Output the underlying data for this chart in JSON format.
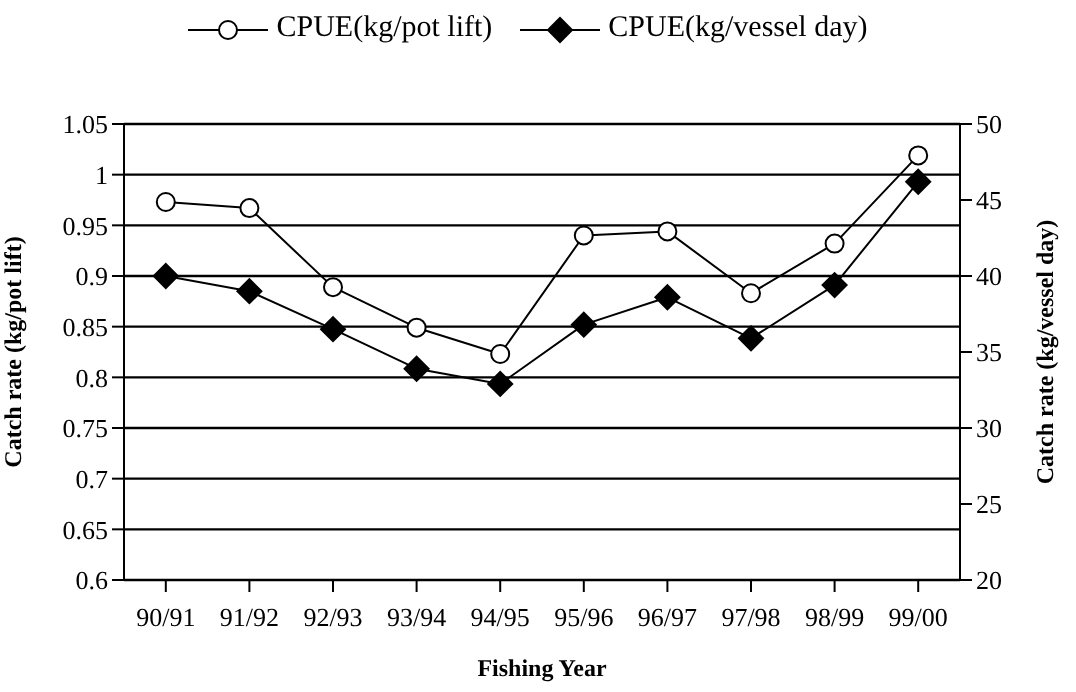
{
  "chart_data": {
    "type": "line",
    "xlabel": "Fishing Year",
    "ylabel": "Catch rate (kg/pot lift)",
    "y2label": "Catch rate (kg/vessel day)",
    "categories": [
      "90/91",
      "91/92",
      "92/93",
      "93/94",
      "94/95",
      "95/96",
      "96/97",
      "97/98",
      "98/99",
      "99/00"
    ],
    "series": [
      {
        "name": "CPUE(kg/pot lift)",
        "color": "#000000",
        "marker": "circle",
        "values": [
          0.973,
          0.967,
          0.889,
          0.849,
          0.823,
          0.94,
          0.944,
          0.883,
          0.932,
          1.019
        ]
      },
      {
        "name": "CPUE(kg/vessel day)",
        "color": "#000000",
        "marker": "diamond",
        "axis": "y2",
        "values": [
          40.0,
          39.0,
          36.5,
          33.9,
          32.9,
          36.8,
          38.6,
          35.9,
          39.4,
          46.2
        ]
      }
    ],
    "ylim": [
      0.6,
      1.05
    ],
    "yticks": [
      0.6,
      0.65,
      0.7,
      0.75,
      0.8,
      0.85,
      0.9,
      0.95,
      1,
      1.05
    ],
    "y2lim": [
      20,
      50
    ],
    "y2ticks": [
      20,
      25,
      30,
      35,
      40,
      45,
      50
    ],
    "grid": "y",
    "legend": "top",
    "line_style": "solid"
  }
}
